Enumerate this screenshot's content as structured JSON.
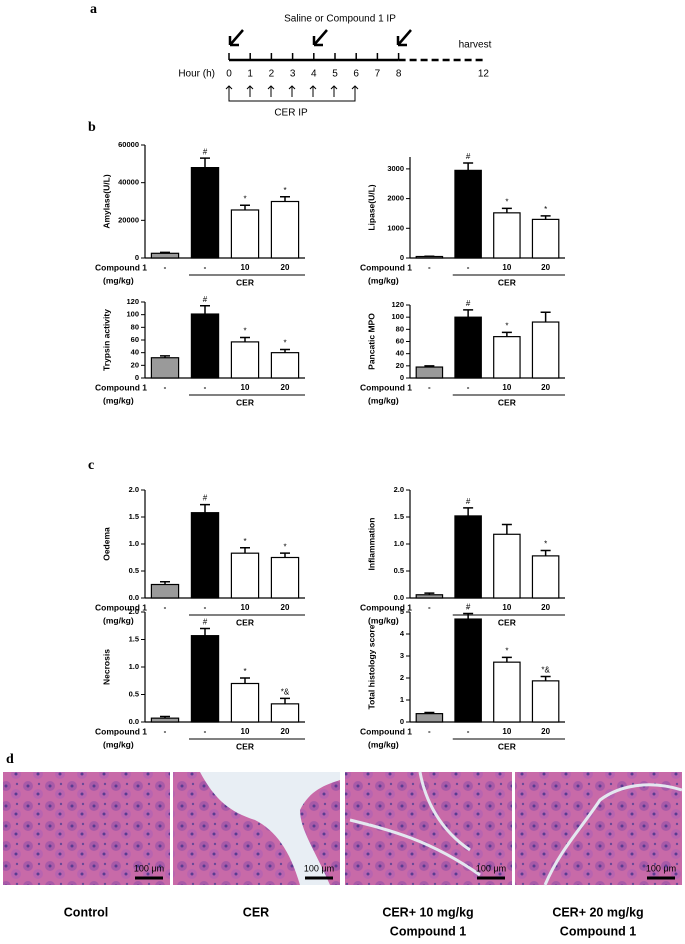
{
  "panel_labels": [
    "a",
    "b",
    "c",
    "d"
  ],
  "timeline": {
    "title": "Saline or Compound 1  IP",
    "hour_label": "Hour (h)",
    "hours": [
      0,
      1,
      2,
      3,
      4,
      5,
      6,
      7,
      8,
      12
    ],
    "end_label": "harvest",
    "cer_label": "CER IP"
  },
  "chart_data": [
    {
      "type": "bar",
      "y_label": "Amylase(U/L)",
      "categories": [
        "-",
        "-",
        "10",
        "20"
      ],
      "row_label": "Compound 1",
      "row_unit": "(mg/kg)",
      "group_label": "CER",
      "values": [
        2500,
        48000,
        25500,
        30000
      ],
      "errors": [
        500,
        5000,
        2500,
        2500
      ],
      "annotations": [
        null,
        "#",
        "*",
        "*"
      ],
      "colors": [
        "#9a9a9a",
        "#000000",
        "#ffffff",
        "#ffffff"
      ],
      "ylim": [
        0,
        60000
      ],
      "yticks": [
        0,
        20000,
        40000,
        60000
      ]
    },
    {
      "type": "bar",
      "y_label": "Lipase(U/L)",
      "categories": [
        "-",
        "-",
        "10",
        "20"
      ],
      "row_label": "Compound 1",
      "row_unit": "(mg/kg)",
      "group_label": "CER",
      "values": [
        50,
        2950,
        1520,
        1300
      ],
      "errors": [
        10,
        250,
        150,
        120
      ],
      "annotations": [
        null,
        "#",
        "*",
        "*"
      ],
      "colors": [
        "#9a9a9a",
        "#000000",
        "#ffffff",
        "#ffffff"
      ],
      "ylim": [
        0,
        3400
      ],
      "yticks": [
        0,
        1000,
        2000,
        3000
      ]
    },
    {
      "type": "bar",
      "y_label": "Trypsin activity",
      "categories": [
        "-",
        "-",
        "10",
        "20"
      ],
      "row_label": "Compound 1",
      "row_unit": "(mg/kg)",
      "group_label": "CER",
      "values": [
        32,
        101,
        57,
        40
      ],
      "errors": [
        3,
        13,
        7,
        5
      ],
      "annotations": [
        null,
        "#",
        "*",
        "*"
      ],
      "colors": [
        "#9a9a9a",
        "#000000",
        "#ffffff",
        "#ffffff"
      ],
      "ylim": [
        0,
        120
      ],
      "yticks": [
        0,
        20,
        40,
        60,
        80,
        100,
        120
      ]
    },
    {
      "type": "bar",
      "y_label": "Pancatic MPO",
      "categories": [
        "-",
        "-",
        "10",
        "20"
      ],
      "row_label": "Compound 1",
      "row_unit": "(mg/kg)",
      "group_label": "CER",
      "values": [
        18,
        100,
        68,
        92
      ],
      "errors": [
        2,
        12,
        7,
        16
      ],
      "annotations": [
        null,
        "#",
        "*",
        null
      ],
      "colors": [
        "#9a9a9a",
        "#000000",
        "#ffffff",
        "#ffffff"
      ],
      "ylim": [
        0,
        120
      ],
      "yticks": [
        0,
        20,
        40,
        60,
        80,
        100,
        120
      ]
    },
    {
      "type": "bar",
      "y_label": "Oedema",
      "categories": [
        "-",
        "-",
        "10",
        "20"
      ],
      "row_label": "Compound 1",
      "row_unit": "(mg/kg)",
      "group_label": "CER",
      "values": [
        0.25,
        1.58,
        0.83,
        0.75
      ],
      "errors": [
        0.05,
        0.15,
        0.1,
        0.08
      ],
      "annotations": [
        null,
        "#",
        "*",
        "*"
      ],
      "colors": [
        "#9a9a9a",
        "#000000",
        "#ffffff",
        "#ffffff"
      ],
      "ylim": [
        0,
        2
      ],
      "yticks": [
        {
          "value": 0,
          "label": "0.0"
        },
        0.5,
        {
          "value": 1,
          "label": "1.0"
        },
        1.5,
        {
          "value": 2,
          "label": "2.0"
        }
      ]
    },
    {
      "type": "bar",
      "y_label": "Inflammation",
      "categories": [
        "-",
        "-",
        "10",
        "20"
      ],
      "row_label": "Compound 1",
      "row_unit": "(mg/kg)",
      "group_label": "CER",
      "values": [
        0.06,
        1.52,
        1.18,
        0.78
      ],
      "errors": [
        0.03,
        0.15,
        0.18,
        0.1
      ],
      "annotations": [
        null,
        "#",
        null,
        "*"
      ],
      "colors": [
        "#9a9a9a",
        "#000000",
        "#ffffff",
        "#ffffff"
      ],
      "ylim": [
        0,
        2
      ],
      "yticks": [
        {
          "value": 0,
          "label": "0.0"
        },
        0.5,
        {
          "value": 1,
          "label": "1.0"
        },
        1.5,
        {
          "value": 2,
          "label": "2.0"
        }
      ]
    },
    {
      "type": "bar",
      "y_label": "Necrosis",
      "categories": [
        "-",
        "-",
        "10",
        "20"
      ],
      "row_label": "Compound 1",
      "row_unit": "(mg/kg)",
      "group_label": "CER",
      "values": [
        0.07,
        1.57,
        0.7,
        0.33
      ],
      "errors": [
        0.03,
        0.13,
        0.1,
        0.1
      ],
      "annotations": [
        null,
        "#",
        "*",
        "*&"
      ],
      "colors": [
        "#9a9a9a",
        "#000000",
        "#ffffff",
        "#ffffff"
      ],
      "ylim": [
        0,
        2
      ],
      "yticks": [
        {
          "value": 0,
          "label": "0.0"
        },
        0.5,
        {
          "value": 1,
          "label": "1.0"
        },
        1.5,
        {
          "value": 2,
          "label": "2.0"
        }
      ]
    },
    {
      "type": "bar",
      "y_label": "Total histology score",
      "categories": [
        "-",
        "-",
        "10",
        "20"
      ],
      "row_label": "Compound 1",
      "row_unit": "(mg/kg)",
      "group_label": "CER",
      "values": [
        0.38,
        4.68,
        2.72,
        1.87
      ],
      "errors": [
        0.05,
        0.25,
        0.22,
        0.2
      ],
      "annotations": [
        null,
        "#",
        "*",
        "*&"
      ],
      "colors": [
        "#9a9a9a",
        "#000000",
        "#ffffff",
        "#ffffff"
      ],
      "ylim": [
        0,
        5
      ],
      "yticks": [
        0,
        1,
        2,
        3,
        4,
        5
      ]
    }
  ],
  "micrographs": {
    "scale_bar": "100 μm",
    "captions": [
      [
        "Control"
      ],
      [
        "CER"
      ],
      [
        "CER+ 10 mg/kg",
        "Compound 1"
      ],
      [
        "CER+ 20 mg/kg",
        "Compound 1"
      ]
    ]
  }
}
